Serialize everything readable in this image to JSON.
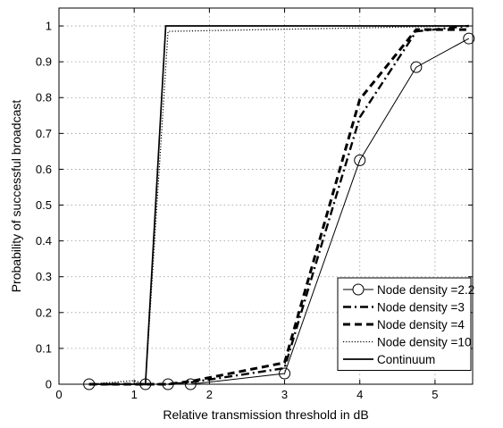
{
  "chart_data": {
    "type": "line",
    "title": "",
    "xlabel": "Relative transmission threshold in dB",
    "ylabel": "Probability of successful broadcast",
    "xlim": [
      0,
      5.5
    ],
    "ylim": [
      0,
      1.05
    ],
    "xticks": [
      0,
      1,
      2,
      3,
      4,
      5
    ],
    "yticks": [
      0,
      0.1,
      0.2,
      0.3,
      0.4,
      0.5,
      0.6,
      0.7,
      0.8,
      0.9,
      1
    ],
    "grid": true,
    "legend_position": "bottom-right",
    "series": [
      {
        "name": "Node density =2.2",
        "style": "solid-thin-circle",
        "x": [
          0.4,
          1.15,
          1.45,
          1.75,
          3.0,
          4.0,
          4.75,
          5.45
        ],
        "y": [
          0.0,
          0.0,
          0.0,
          0.0,
          0.03,
          0.625,
          0.885,
          0.965
        ]
      },
      {
        "name": "Node density =3",
        "style": "dashdot",
        "x": [
          0.4,
          1.15,
          1.45,
          1.75,
          3.0,
          4.0,
          4.75,
          5.45
        ],
        "y": [
          0.0,
          0.0,
          0.0,
          0.005,
          0.045,
          0.745,
          0.985,
          1.0
        ]
      },
      {
        "name": "Node density =4",
        "style": "dashed-thick",
        "x": [
          0.4,
          1.15,
          1.45,
          1.75,
          3.0,
          4.0,
          4.75,
          5.45
        ],
        "y": [
          0.0,
          0.0,
          0.0,
          0.008,
          0.06,
          0.795,
          0.99,
          0.99
        ]
      },
      {
        "name": "Node density =10",
        "style": "dotted",
        "x": [
          0.4,
          1.0,
          1.15,
          1.45,
          5.45
        ],
        "y": [
          0.0,
          0.01,
          0.0,
          0.985,
          1.0
        ]
      },
      {
        "name": "Continuum",
        "style": "solid",
        "x": [
          0.4,
          1.15,
          1.42,
          5.45
        ],
        "y": [
          0.0,
          0.0,
          1.0,
          1.0
        ]
      }
    ]
  }
}
